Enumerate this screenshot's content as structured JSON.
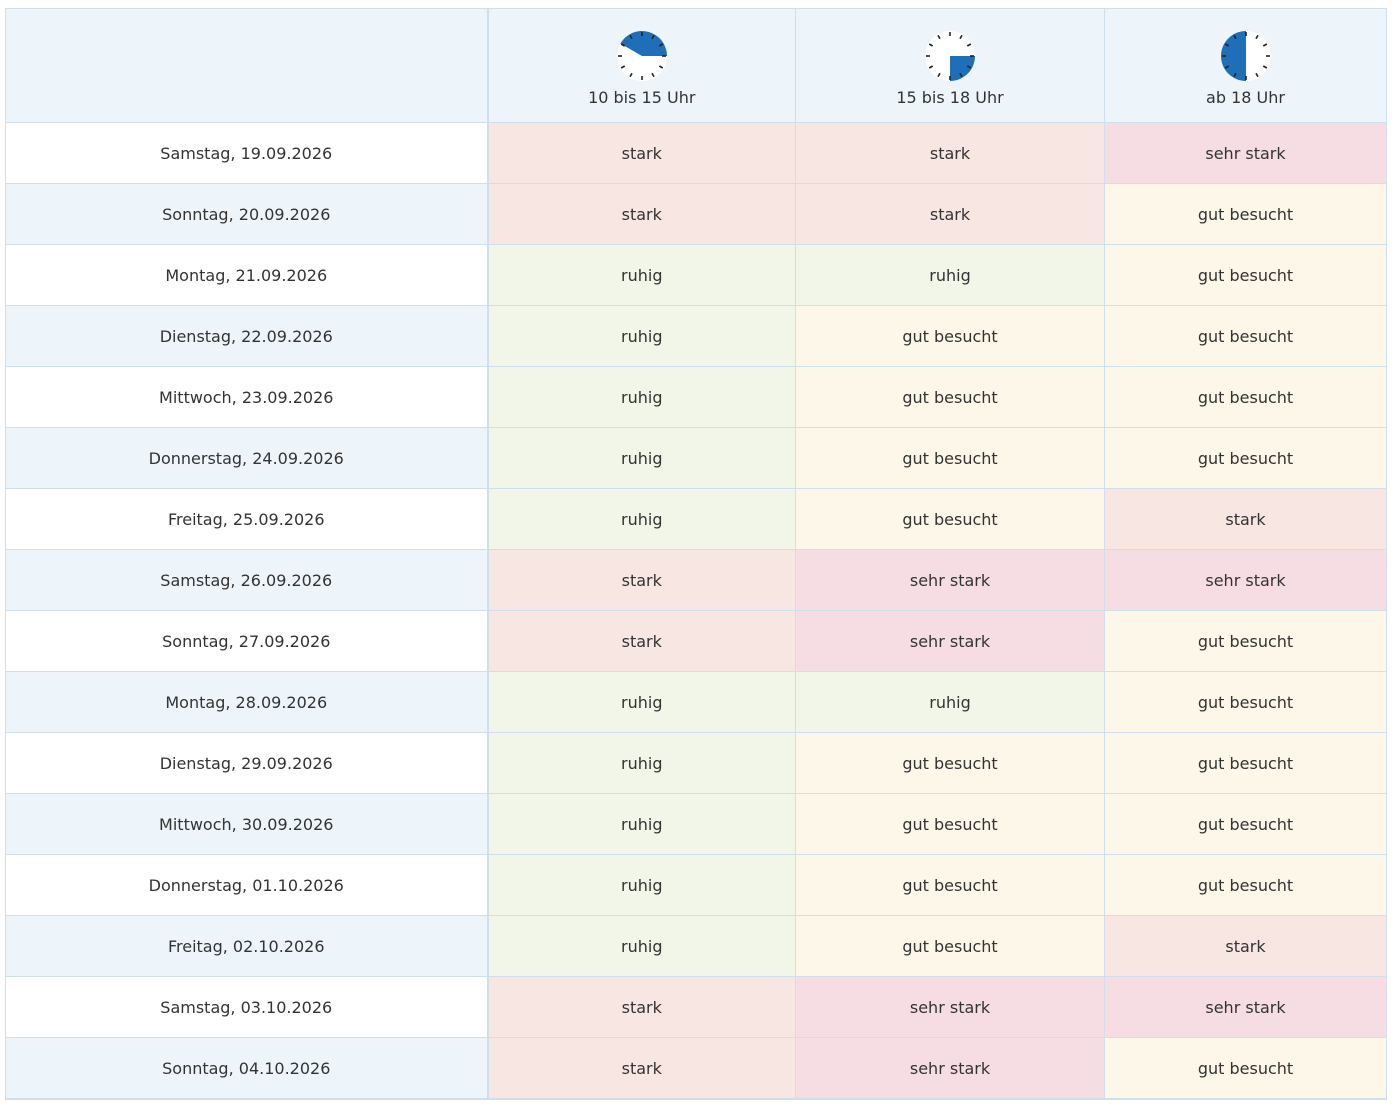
{
  "colors": {
    "ruhig": "#f1f6e8",
    "gut besucht": "#fcf7e9",
    "stark": "#f8e6e2",
    "sehr stark": "#f6dde3",
    "clock_fill": "#1e6eb8"
  },
  "header": {
    "columns": [
      {
        "label": "10 bis 15 Uhr",
        "icon": "clock-10-15-icon",
        "start_hour": 10,
        "end_hour": 15
      },
      {
        "label": "15 bis 18 Uhr",
        "icon": "clock-15-18-icon",
        "start_hour": 15,
        "end_hour": 18
      },
      {
        "label": "ab 18 Uhr",
        "icon": "clock-18-plus-icon",
        "start_hour": 18,
        "end_hour": 24
      }
    ]
  },
  "rows": [
    {
      "date": "Samstag, 19.09.2026",
      "values": [
        "stark",
        "stark",
        "sehr stark"
      ]
    },
    {
      "date": "Sonntag, 20.09.2026",
      "values": [
        "stark",
        "stark",
        "gut besucht"
      ]
    },
    {
      "date": "Montag, 21.09.2026",
      "values": [
        "ruhig",
        "ruhig",
        "gut besucht"
      ]
    },
    {
      "date": "Dienstag, 22.09.2026",
      "values": [
        "ruhig",
        "gut besucht",
        "gut besucht"
      ]
    },
    {
      "date": "Mittwoch, 23.09.2026",
      "values": [
        "ruhig",
        "gut besucht",
        "gut besucht"
      ]
    },
    {
      "date": "Donnerstag, 24.09.2026",
      "values": [
        "ruhig",
        "gut besucht",
        "gut besucht"
      ]
    },
    {
      "date": "Freitag, 25.09.2026",
      "values": [
        "ruhig",
        "gut besucht",
        "stark"
      ]
    },
    {
      "date": "Samstag, 26.09.2026",
      "values": [
        "stark",
        "sehr stark",
        "sehr stark"
      ]
    },
    {
      "date": "Sonntag, 27.09.2026",
      "values": [
        "stark",
        "sehr stark",
        "gut besucht"
      ]
    },
    {
      "date": "Montag, 28.09.2026",
      "values": [
        "ruhig",
        "ruhig",
        "gut besucht"
      ]
    },
    {
      "date": "Dienstag, 29.09.2026",
      "values": [
        "ruhig",
        "gut besucht",
        "gut besucht"
      ]
    },
    {
      "date": "Mittwoch, 30.09.2026",
      "values": [
        "ruhig",
        "gut besucht",
        "gut besucht"
      ]
    },
    {
      "date": "Donnerstag, 01.10.2026",
      "values": [
        "ruhig",
        "gut besucht",
        "gut besucht"
      ]
    },
    {
      "date": "Freitag, 02.10.2026",
      "values": [
        "ruhig",
        "gut besucht",
        "stark"
      ]
    },
    {
      "date": "Samstag, 03.10.2026",
      "values": [
        "stark",
        "sehr stark",
        "sehr stark"
      ]
    },
    {
      "date": "Sonntag, 04.10.2026",
      "values": [
        "stark",
        "sehr stark",
        "gut besucht"
      ]
    }
  ]
}
